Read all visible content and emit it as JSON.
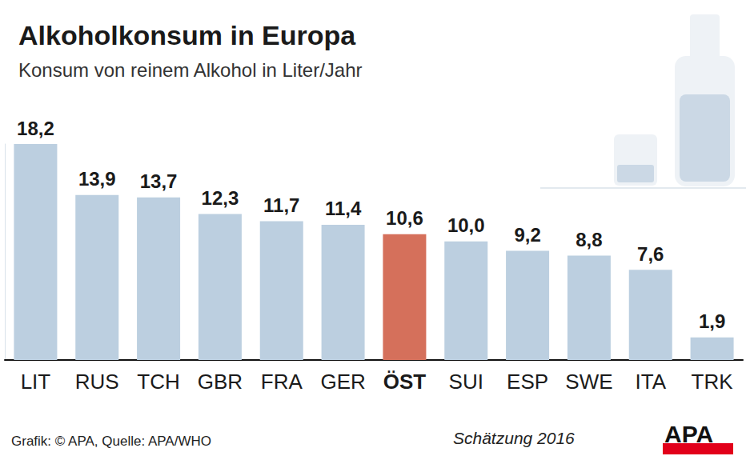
{
  "chart_data": {
    "type": "bar",
    "title": "Alkoholkonsum in Europa",
    "subtitle": "Konsum von reinem Alkohol in Liter/Jahr",
    "categories": [
      "LIT",
      "RUS",
      "TCH",
      "GBR",
      "FRA",
      "GER",
      "ÖST",
      "SUI",
      "ESP",
      "SWE",
      "ITA",
      "TRK"
    ],
    "values": [
      18.2,
      13.9,
      13.7,
      12.3,
      11.7,
      11.4,
      10.6,
      10.0,
      9.2,
      8.8,
      7.6,
      1.9
    ],
    "value_labels": [
      "18,2",
      "13,9",
      "13,7",
      "12,3",
      "11,7",
      "11,4",
      "10,6",
      "10,0",
      "9,2",
      "8,8",
      "7,6",
      "1,9"
    ],
    "colors": [
      "#bccfe0",
      "#bccfe0",
      "#bccfe0",
      "#bccfe0",
      "#bccfe0",
      "#bccfe0",
      "#d5705b",
      "#bccfe0",
      "#bccfe0",
      "#bccfe0",
      "#bccfe0",
      "#bccfe0"
    ],
    "ylim": [
      0,
      18.2
    ],
    "yticks": [],
    "grid": false,
    "data_labels": true,
    "tick_labels": "x",
    "annotations": [
      "Grafik: © APA, Quelle: APA/WHO",
      "Schätzung 2016",
      "APA"
    ]
  }
}
